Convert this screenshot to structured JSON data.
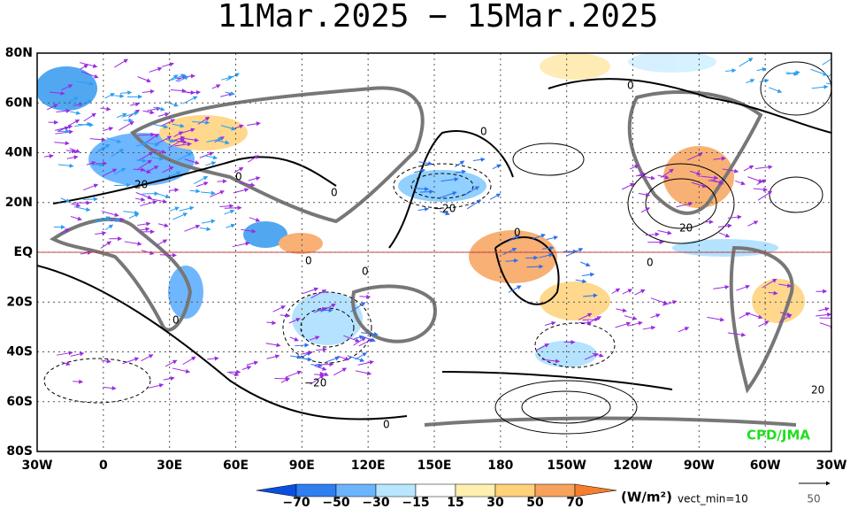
{
  "header": {
    "title": "11Mar.2025 − 15Mar.2025"
  },
  "lat_labels": [
    "80N",
    "60N",
    "40N",
    "20N",
    "EQ",
    "20S",
    "40S",
    "60S",
    "80S"
  ],
  "lon_labels": [
    "30W",
    "0",
    "30E",
    "60E",
    "90E",
    "120E",
    "150E",
    "180",
    "150W",
    "120W",
    "90W",
    "60W",
    "30W"
  ],
  "colorbar": {
    "labels": [
      "−70",
      "−50",
      "−30",
      "−15",
      "15",
      "30",
      "50",
      "70"
    ],
    "unit": "(W/m²)",
    "note": "vect_min=10"
  },
  "reference_vector": {
    "label": "50"
  },
  "credit": "CPD/JMA",
  "contour_labels": [
    "0",
    "0",
    "0",
    "0",
    "0",
    "0",
    "0",
    "0",
    "0",
    "0",
    "20",
    "20",
    "20",
    "−20",
    "−20"
  ]
}
